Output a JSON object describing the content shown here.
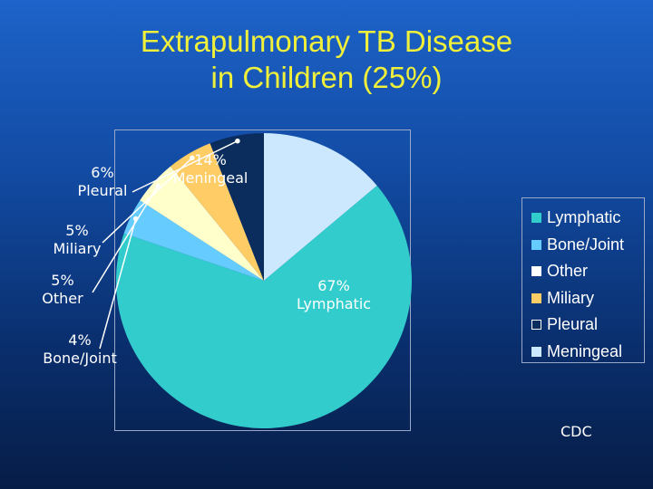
{
  "chart_data": {
    "type": "pie",
    "title": [
      "Extrapulmonary TB Disease",
      "in Children (25%)"
    ],
    "slices": [
      {
        "name": "Lymphatic",
        "value": 67,
        "label": "67%",
        "label_name": "Lymphatic",
        "color": "#33cccc"
      },
      {
        "name": "Bone/Joint",
        "value": 4,
        "label": "4%",
        "label_name": "Bone/Joint",
        "color": "#66ccff"
      },
      {
        "name": "Other",
        "value": 5,
        "label": "5%",
        "label_name": "Other",
        "color": "#ffffcc"
      },
      {
        "name": "Miliary",
        "value": 5,
        "label": "5%",
        "label_name": "Miliary",
        "color": "#ffcc66"
      },
      {
        "name": "Pleural",
        "value": 6,
        "label": "6%",
        "label_name": "Pleural",
        "color": "#0a2d5e"
      },
      {
        "name": "Meningeal",
        "value": 14,
        "label": "14%",
        "label_name": "Meningeal",
        "color": "#cce8ff"
      }
    ],
    "legend": {
      "placement": "right",
      "entries": [
        "Lymphatic",
        "Bone/Joint",
        "Other",
        "Miliary",
        "Pleural",
        "Meningeal"
      ],
      "swatch_colors": [
        "#33cccc",
        "#66ccff",
        "#ffffff",
        "#ffcc66",
        "#0a2d5e",
        "#cce8ff"
      ]
    }
  },
  "source": "CDC"
}
